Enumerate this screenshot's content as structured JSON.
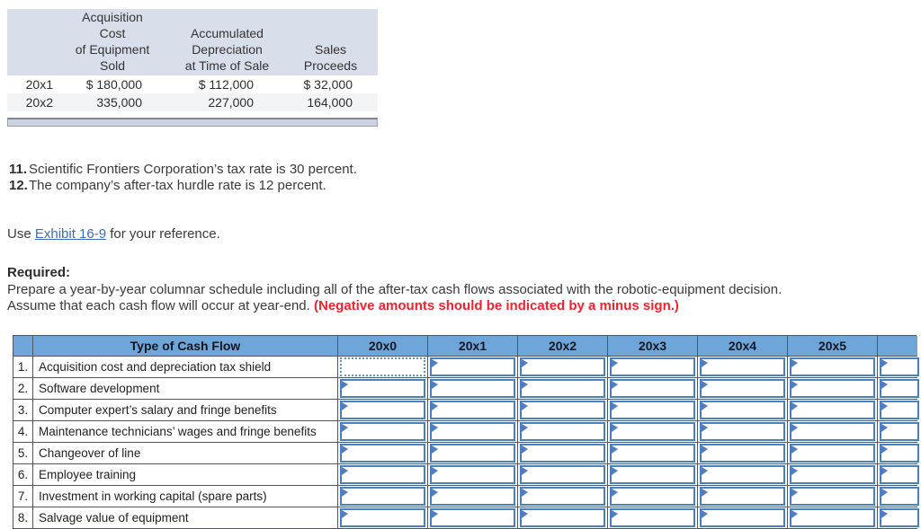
{
  "colors": {
    "header_blue": "#6FA6D9",
    "cell_border_blue": "#4B80C0",
    "warning_red": "#F5222D",
    "link_blue": "#3A6DB8",
    "top_header_bg": "#D9DFEA"
  },
  "top_table": {
    "header_cols": [
      "",
      "Acquisition\nCost\nof Equipment\nSold",
      "Accumulated\nDepreciation\nat Time of Sale",
      "Sales\nProceeds"
    ],
    "rows": [
      {
        "year": "20x1",
        "acquisition_cost": "$ 180,000",
        "accumulated_depreciation": "$ 112,000",
        "sales_proceeds": "$ 32,000"
      },
      {
        "year": "20x2",
        "acquisition_cost": "335,000",
        "accumulated_depreciation": "227,000",
        "sales_proceeds": "164,000"
      }
    ]
  },
  "facts": [
    {
      "num": "11.",
      "text": "Scientific Frontiers Corporation’s tax rate is 30 percent."
    },
    {
      "num": "12.",
      "text": "The company’s after-tax hurdle rate is 12 percent."
    }
  ],
  "reference": {
    "prefix": "Use ",
    "link_text": "Exhibit 16-9",
    "suffix": " for your reference."
  },
  "required": {
    "label": "Required:",
    "line1": "Prepare a year-by-year columnar schedule including all of the after-tax cash flows associated with the robotic-equipment decision.",
    "line2": "Assume that each cash flow will occur at year-end. ",
    "warning": "(Negative amounts should be indicated by a minus sign.)"
  },
  "schedule": {
    "row_header": "Type of Cash Flow",
    "year_columns": [
      "20x0",
      "20x1",
      "20x2",
      "20x3",
      "20x4",
      "20x5"
    ],
    "rows": [
      {
        "num": "1.",
        "label": "Acquisition cost and depreciation tax shield"
      },
      {
        "num": "2.",
        "label": "Software development"
      },
      {
        "num": "3.",
        "label": "Computer expert’s salary and fringe benefits"
      },
      {
        "num": "4.",
        "label": "Maintenance technicians’ wages and fringe benefits"
      },
      {
        "num": "5.",
        "label": "Changeover of line"
      },
      {
        "num": "6.",
        "label": "Employee training"
      },
      {
        "num": "7.",
        "label": "Investment in working capital (spare parts)"
      },
      {
        "num": "8.",
        "label": "Salvage value of equipment"
      }
    ]
  }
}
